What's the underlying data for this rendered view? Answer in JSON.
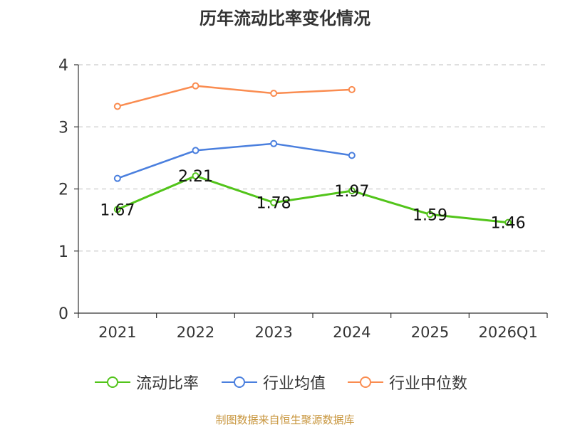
{
  "chart_data": {
    "type": "line",
    "title": "历年流动比率变化情况",
    "categories": [
      "2021",
      "2022",
      "2023",
      "2024",
      "2025",
      "2026Q1"
    ],
    "series": [
      {
        "name": "流动比率",
        "color": "#52c41a",
        "values": [
          1.67,
          2.21,
          1.78,
          1.97,
          1.59,
          1.46
        ],
        "labels": [
          "1.67",
          "2.21",
          "1.78",
          "1.97",
          "1.59",
          "1.46"
        ]
      },
      {
        "name": "行业均值",
        "color": "#4a7fde",
        "values": [
          2.17,
          2.62,
          2.73,
          2.54,
          null,
          null
        ]
      },
      {
        "name": "行业中位数",
        "color": "#fa8c50",
        "values": [
          3.33,
          3.66,
          3.54,
          3.6,
          null,
          null
        ]
      }
    ],
    "ylim": [
      0,
      4
    ],
    "yticks": [
      "0",
      "1",
      "2",
      "3",
      "4"
    ],
    "xlabel": "",
    "ylabel": "",
    "grid": true,
    "legend_position": "bottom"
  },
  "footer": {
    "source": "制图数据来自恒生聚源数据库"
  }
}
